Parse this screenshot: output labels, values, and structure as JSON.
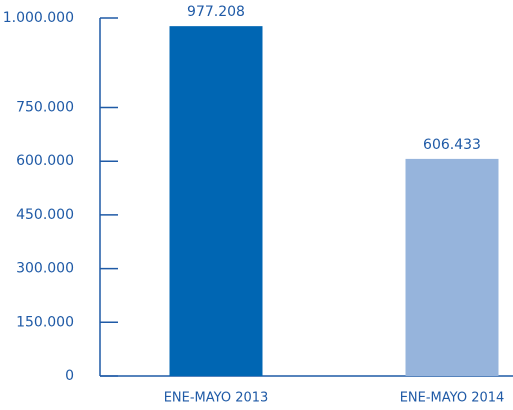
{
  "chart_data": {
    "type": "bar",
    "categories": [
      "ENE-MAYO 2013",
      "ENE-MAYO 2014"
    ],
    "values": [
      977208,
      606433
    ],
    "value_labels": [
      "977.208",
      "606.433"
    ],
    "colors": [
      "#0066b3",
      "#96b4dc"
    ],
    "ylim": [
      0,
      1000000
    ],
    "yticks": [
      0,
      {
        "value": 150000,
        "label": "150.000"
      },
      {
        "value": 300000,
        "label": "300.000"
      },
      {
        "value": 450000,
        "label": "450.000"
      },
      {
        "value": 600000,
        "label": "600.000"
      },
      {
        "value": 750000,
        "label": "750.000"
      },
      {
        "value": 1000000,
        "label": "1.000.000"
      }
    ]
  }
}
